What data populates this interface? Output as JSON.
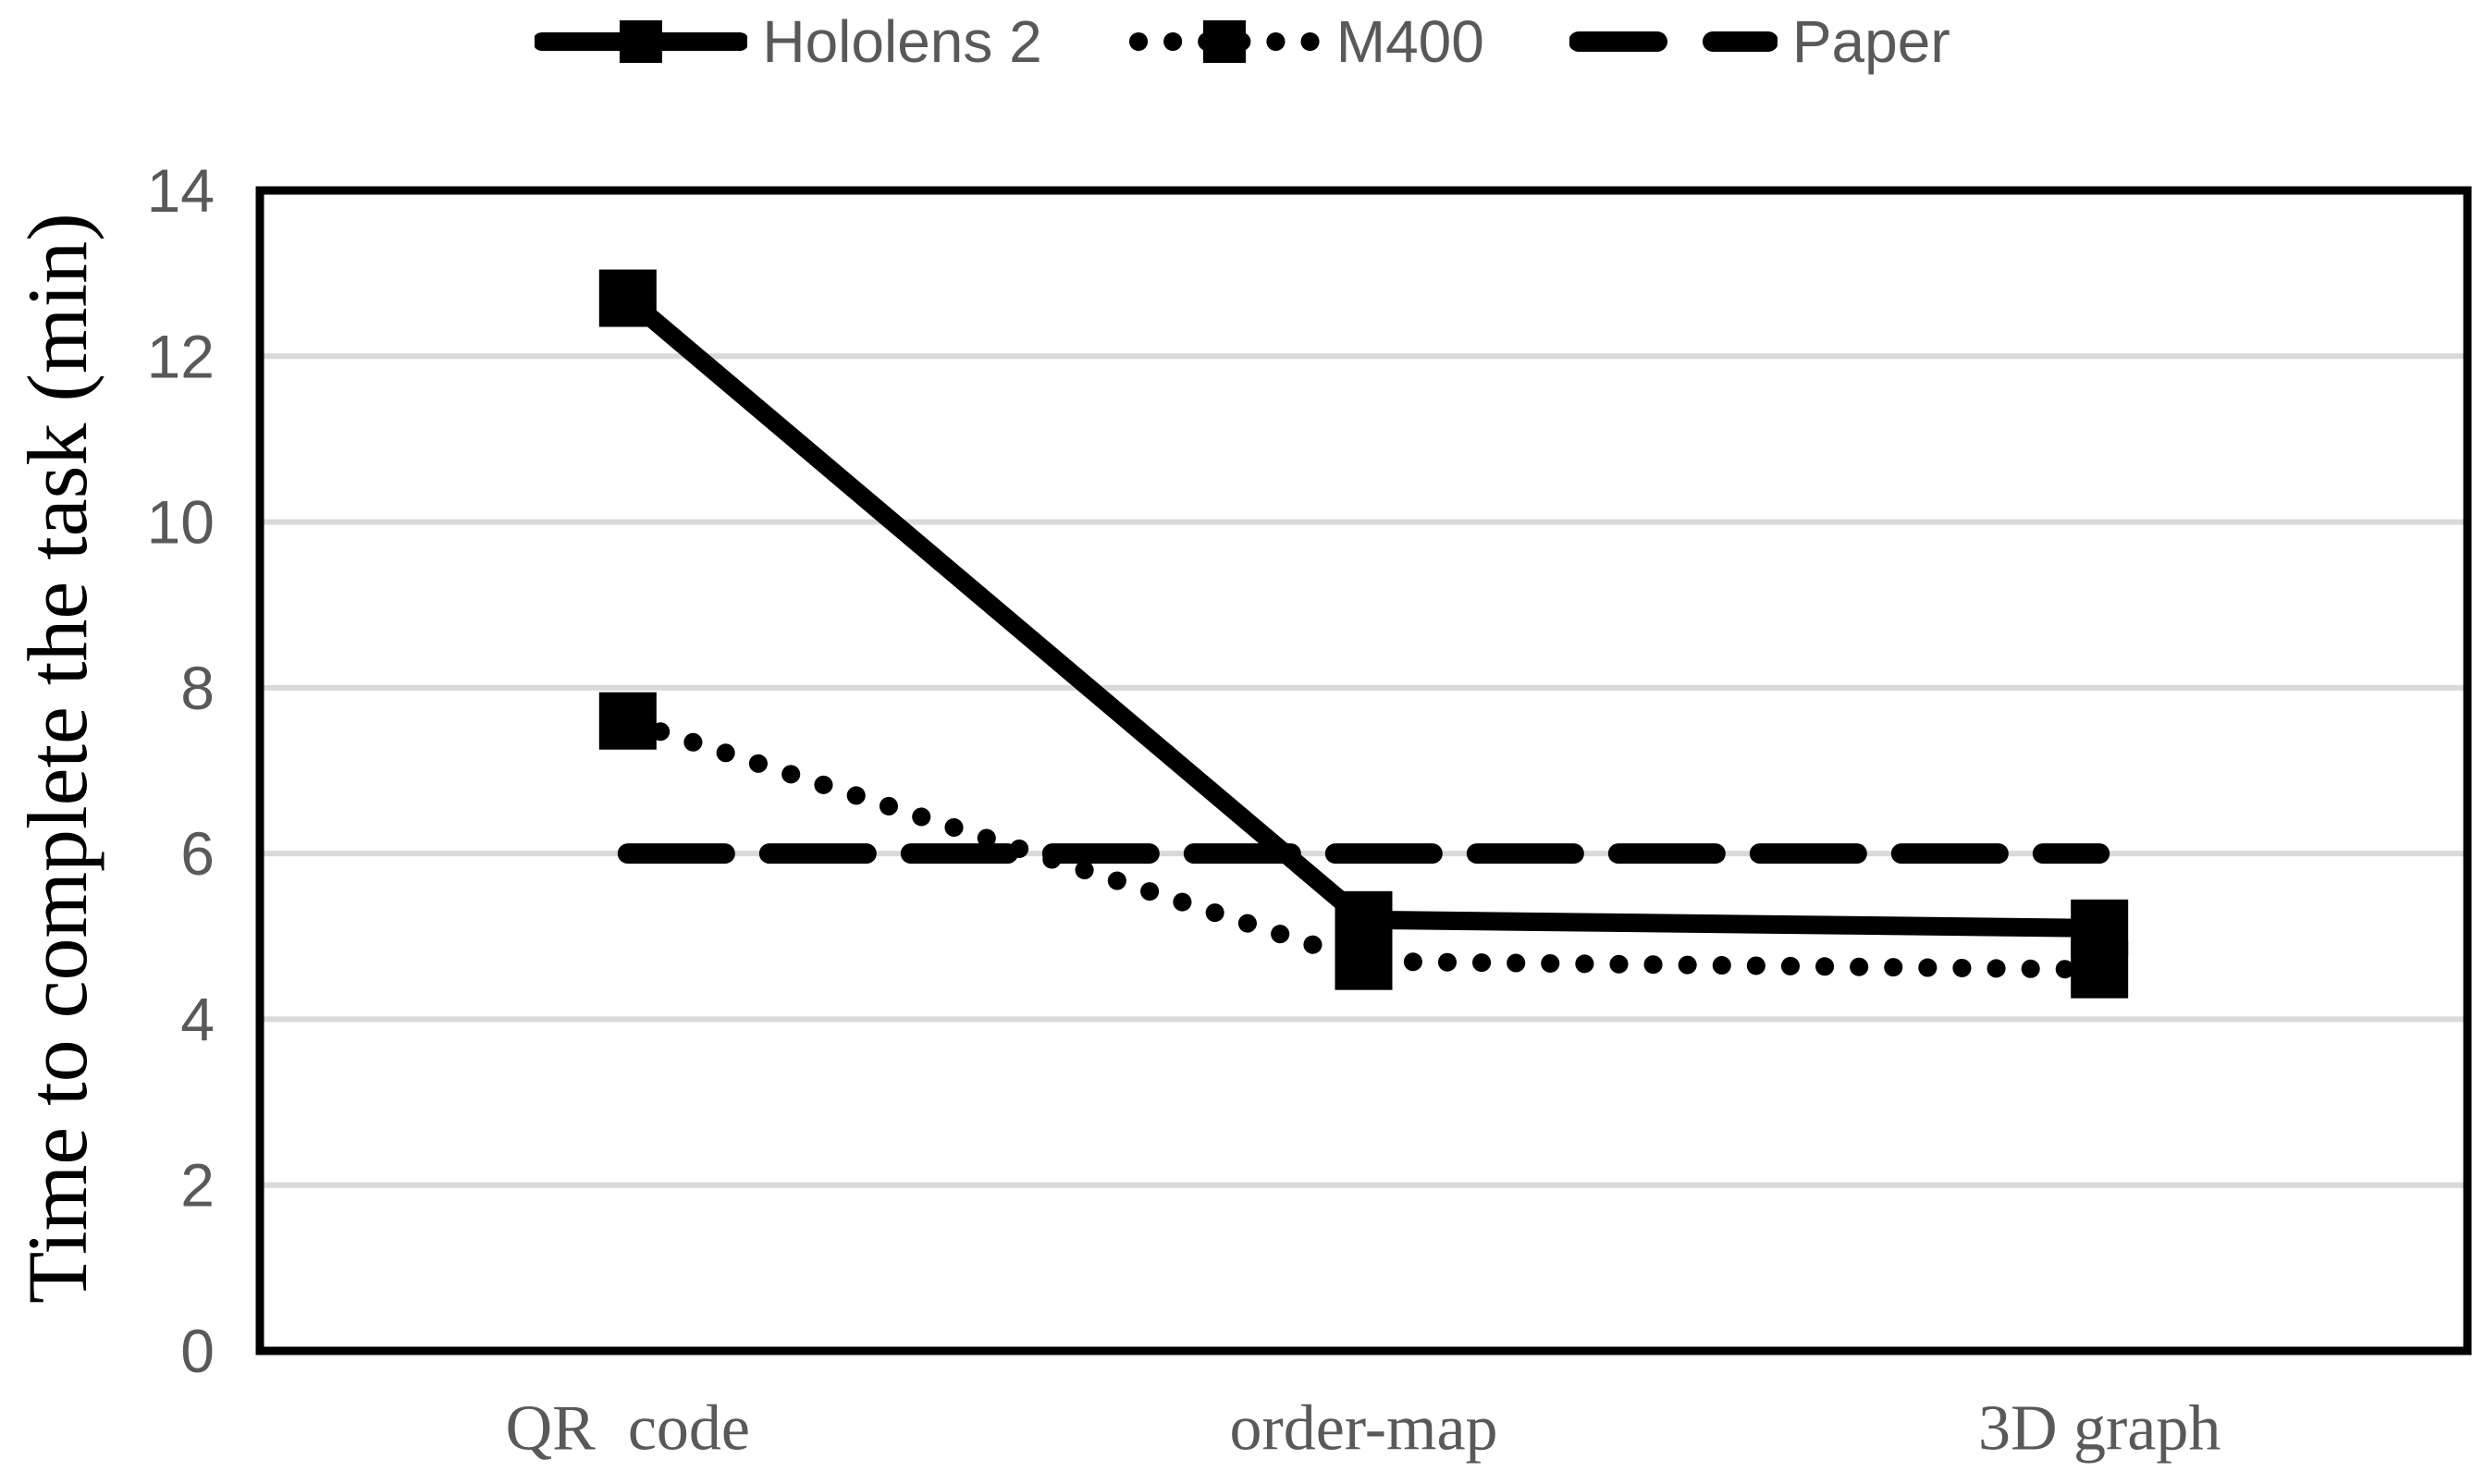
{
  "chart_data": {
    "type": "line",
    "title": "",
    "categories": [
      "QR  code",
      "order-map",
      "3D graph"
    ],
    "series": [
      {
        "name": "Hololens 2",
        "values": [
          12.7,
          5.2,
          5.1
        ],
        "line_style": "solid",
        "marker": "square",
        "color": "#000000"
      },
      {
        "name": "M400",
        "values": [
          7.6,
          4.7,
          4.6
        ],
        "line_style": "dotted",
        "marker": "square",
        "color": "#000000"
      },
      {
        "name": "Paper",
        "values": [
          6,
          6,
          6
        ],
        "line_style": "dashed",
        "marker": "none",
        "color": "#000000"
      }
    ],
    "xlabel": "",
    "ylabel": "Time to complete the task (min)",
    "ylim": [
      0,
      14
    ],
    "yticks": [
      0,
      2,
      4,
      6,
      8,
      10,
      12,
      14
    ],
    "grid": "horizontal",
    "legend_position": "top",
    "colors": {
      "series": "#000000",
      "gridline": "#d9d9d9",
      "axis_frame": "#000000",
      "tick_label": "#595959",
      "category_label": "#595959",
      "axis_title": "#000000",
      "legend_label": "#595959",
      "background": "#ffffff"
    }
  }
}
